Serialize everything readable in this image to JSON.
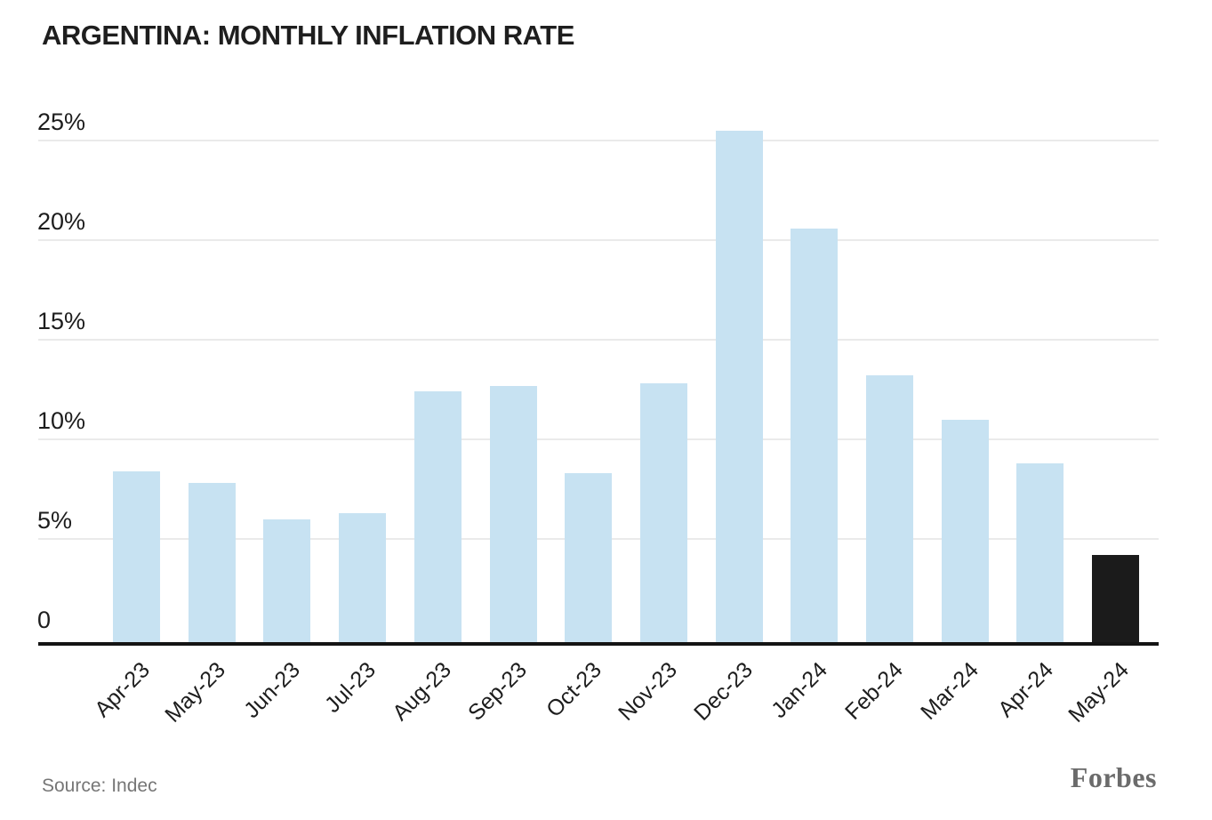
{
  "header": {
    "title": "ARGENTINA: MONTHLY INFLATION RATE"
  },
  "chart_data": {
    "type": "bar",
    "title": "ARGENTINA: MONTHLY INFLATION RATE",
    "categories": [
      "Apr-23",
      "May-23",
      "Jun-23",
      "Jul-23",
      "Aug-23",
      "Sep-23",
      "Oct-23",
      "Nov-23",
      "Dec-23",
      "Jan-24",
      "Feb-24",
      "Mar-24",
      "Apr-24",
      "May-24"
    ],
    "values": [
      8.4,
      7.8,
      6.0,
      6.3,
      12.4,
      12.7,
      8.3,
      12.8,
      25.5,
      20.6,
      13.2,
      11.0,
      8.8,
      4.2
    ],
    "unit": "%",
    "xlabel": "",
    "ylabel": "",
    "ylim": [
      0,
      27
    ],
    "yticks": [
      0,
      5,
      10,
      15,
      20,
      25
    ],
    "ytick_labels": [
      "0",
      "5%",
      "10%",
      "15%",
      "20%",
      "25%"
    ],
    "grid": "horizontal",
    "legend": "none",
    "highlight_category": "May-24",
    "colors": {
      "bar_default": "#c7e2f2",
      "bar_highlight": "#1b1b1b",
      "gridline": "#eaeaea",
      "axis": "#141414",
      "text": "#1d1d1d"
    }
  },
  "footer": {
    "source": "Source: Indec",
    "brand": "Forbes"
  }
}
